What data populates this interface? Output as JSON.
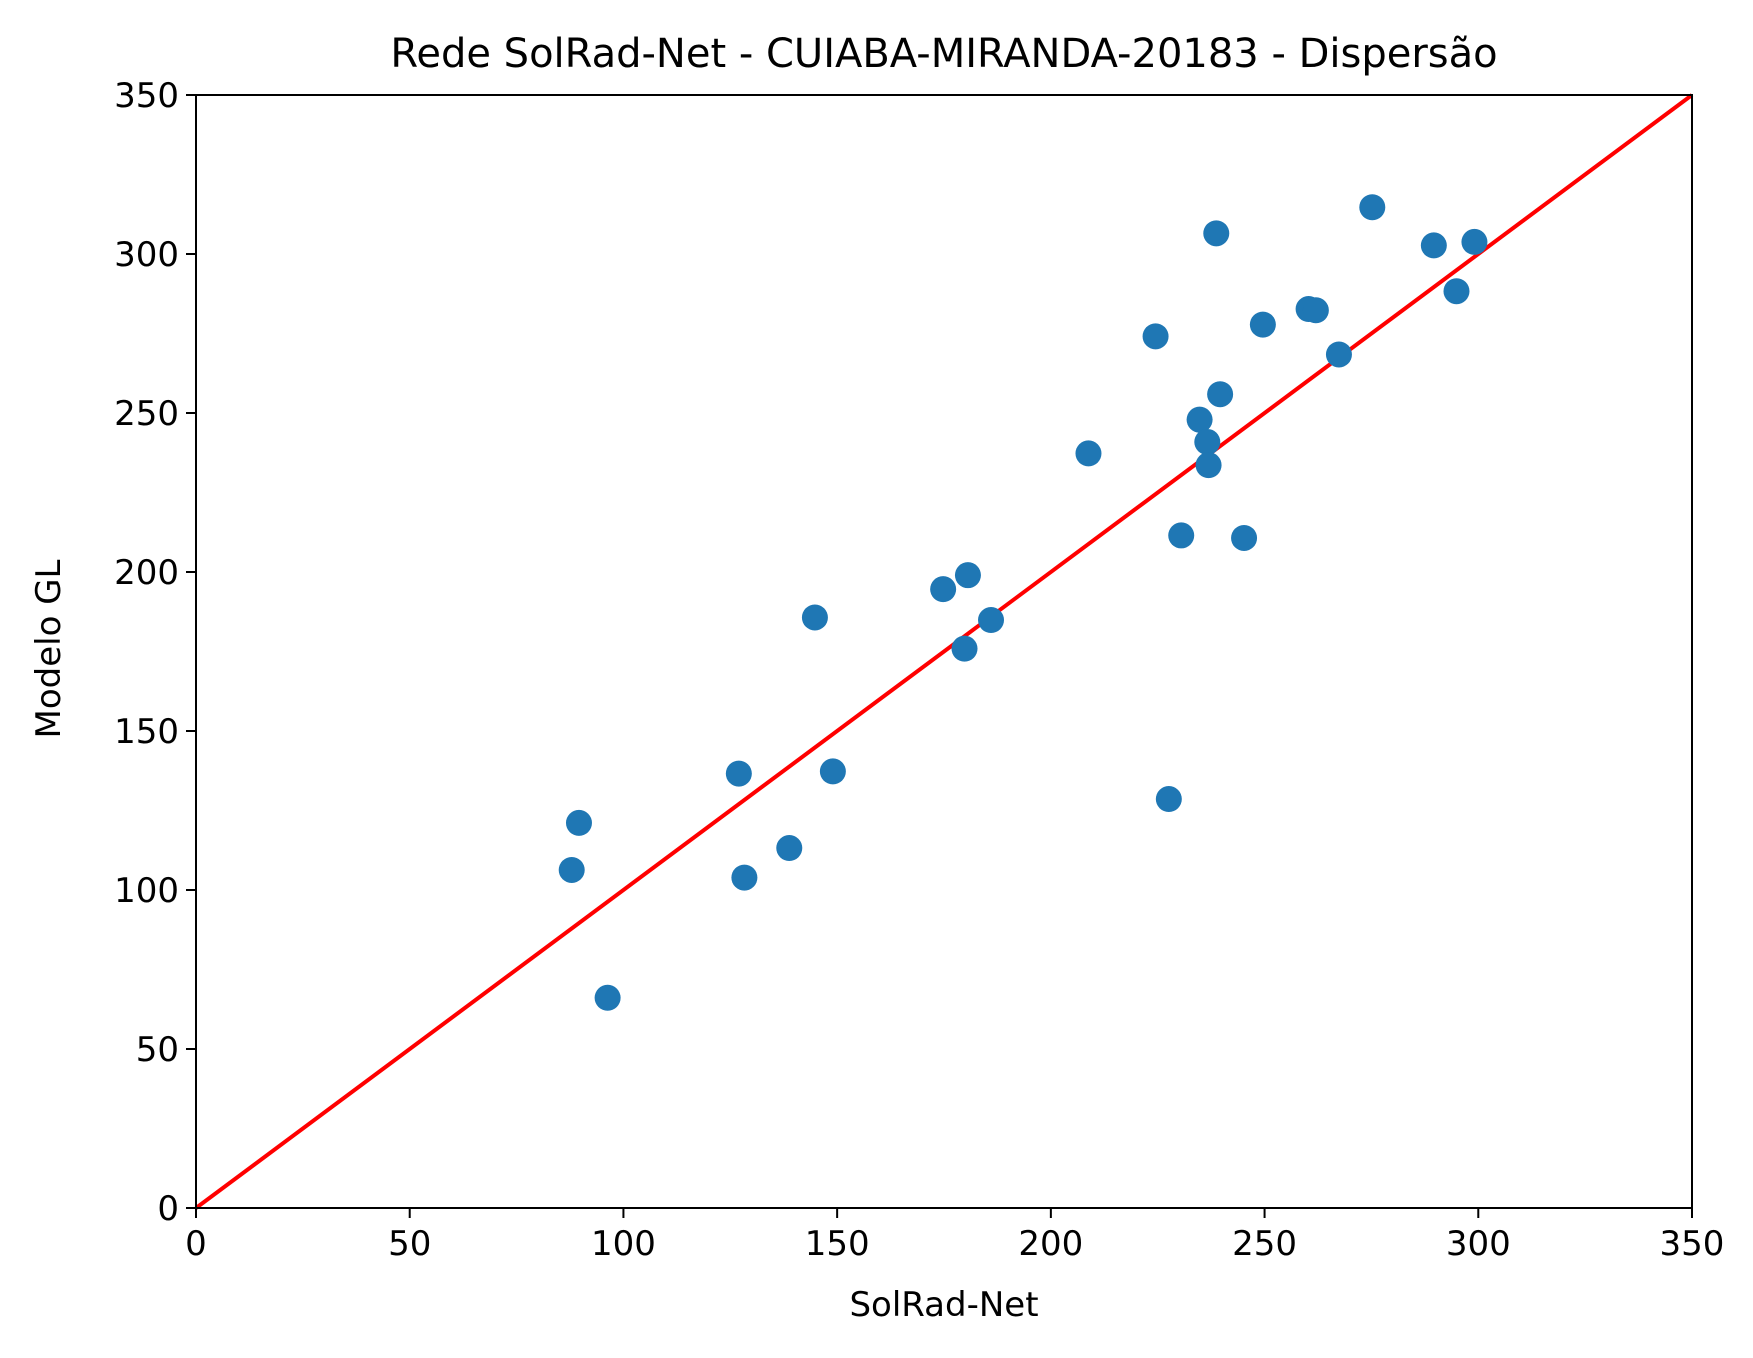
{
  "chart_data": {
    "type": "scatter",
    "title": "Rede SolRad-Net - CUIABA-MIRANDA-20183 - Dispersão",
    "xlabel": "SolRad-Net",
    "ylabel": "Modelo GL",
    "xlim": [
      0,
      350
    ],
    "ylim": [
      0,
      350
    ],
    "xticks": [
      0,
      50,
      100,
      150,
      200,
      250,
      300,
      350
    ],
    "yticks": [
      0,
      50,
      100,
      150,
      200,
      250,
      300,
      350
    ],
    "grid": false,
    "colors": {
      "points": "#1f77b4",
      "reference_line": "#ff0000",
      "axes": "#000000"
    },
    "reference_line": {
      "x": [
        0,
        350
      ],
      "y": [
        0,
        350
      ]
    },
    "series": [
      {
        "x": [
          275.2,
          238.7,
          299.1,
          289.6,
          294.9,
          260.3,
          262.0,
          249.6,
          224.5,
          267.4,
          239.6,
          234.8,
          236.6,
          236.9,
          208.8,
          230.5,
          245.2,
          180.6,
          174.8,
          186.0,
          179.8,
          144.8,
          127.0,
          149.0,
          89.6,
          87.9,
          138.8,
          128.3,
          227.6,
          96.3
        ],
        "y": [
          314.7,
          306.5,
          303.8,
          302.7,
          288.3,
          282.7,
          282.3,
          277.8,
          274.1,
          268.4,
          255.9,
          247.9,
          240.9,
          233.6,
          237.3,
          211.5,
          210.7,
          199.0,
          194.6,
          184.9,
          175.9,
          185.7,
          136.6,
          137.3,
          121.1,
          106.3,
          113.2,
          103.9,
          128.6,
          66.1
        ]
      }
    ]
  }
}
